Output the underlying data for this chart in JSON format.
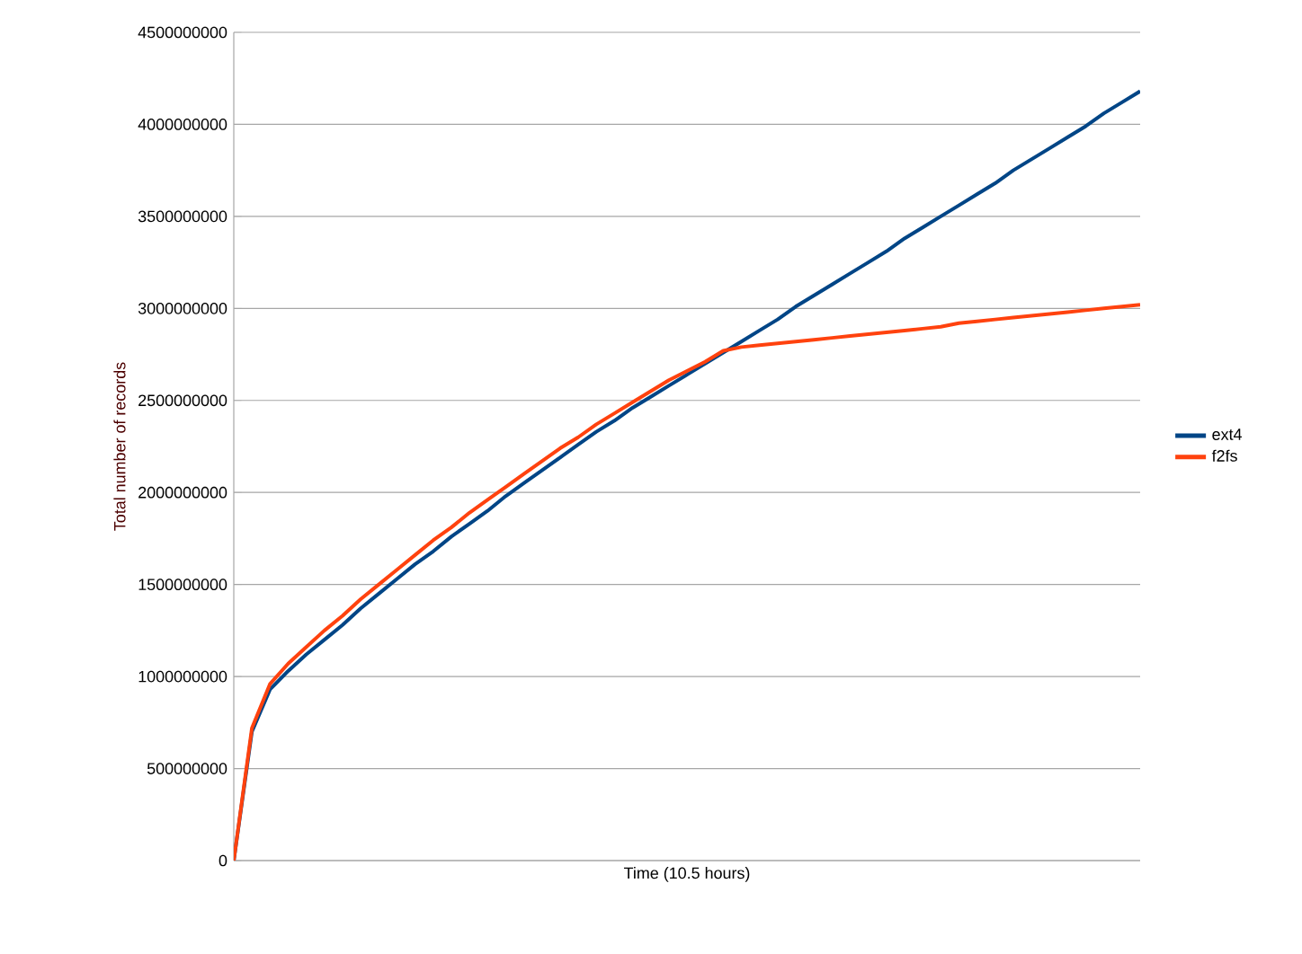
{
  "chart_data": {
    "type": "line",
    "xlabel": "Time (10.5 hours)",
    "ylabel": "Total number of records",
    "categories": [
      null,
      null,
      null,
      null,
      null,
      null,
      null,
      null,
      null,
      null,
      null,
      null,
      null,
      null,
      null,
      null,
      null,
      null,
      null,
      null,
      null,
      null,
      null,
      null,
      null,
      null,
      null,
      null,
      null,
      null,
      null,
      null,
      null,
      null,
      null,
      null,
      null,
      null,
      null,
      null,
      null,
      null,
      null,
      null,
      null,
      null,
      null,
      null,
      null,
      null,
      null
    ],
    "series": [
      {
        "name": "ext4",
        "color": "#004586",
        "values": [
          0,
          700000000,
          930000000,
          1030000000,
          1120000000,
          1200000000,
          1280000000,
          1370000000,
          1450000000,
          1530000000,
          1610000000,
          1680000000,
          1760000000,
          1830000000,
          1900000000,
          1980000000,
          2050000000,
          2120000000,
          2190000000,
          2260000000,
          2330000000,
          2390000000,
          2460000000,
          2520000000,
          2580000000,
          2640000000,
          2700000000,
          2760000000,
          2820000000,
          2880000000,
          2940000000,
          3010000000,
          3070000000,
          3130000000,
          3190000000,
          3250000000,
          3310000000,
          3380000000,
          3440000000,
          3500000000,
          3560000000,
          3620000000,
          3680000000,
          3750000000,
          3810000000,
          3870000000,
          3930000000,
          3990000000,
          4060000000,
          4120000000,
          4180000000
        ]
      },
      {
        "name": "f2fs",
        "color": "#ff420e",
        "values": [
          0,
          720000000,
          960000000,
          1070000000,
          1160000000,
          1250000000,
          1330000000,
          1420000000,
          1500000000,
          1580000000,
          1660000000,
          1740000000,
          1810000000,
          1890000000,
          1960000000,
          2030000000,
          2100000000,
          2170000000,
          2240000000,
          2300000000,
          2370000000,
          2430000000,
          2490000000,
          2550000000,
          2610000000,
          2660000000,
          2710000000,
          2770000000,
          2790000000,
          2800000000,
          2810000000,
          2820000000,
          2830000000,
          2840000000,
          2850000000,
          2860000000,
          2870000000,
          2880000000,
          2890000000,
          2900000000,
          2920000000,
          2930000000,
          2940000000,
          2950000000,
          2960000000,
          2970000000,
          2980000000,
          2990000000,
          3000000000,
          3010000000,
          3020000000
        ]
      }
    ],
    "ylim": [
      0,
      4500000000
    ],
    "yticks": [
      0,
      500000000,
      1000000000,
      1500000000,
      2000000000,
      2500000000,
      3000000000,
      3500000000,
      4000000000,
      4500000000
    ],
    "grid": "y",
    "legend": "right",
    "tick_labels": "y",
    "marker": "none",
    "line_style": "solid"
  }
}
